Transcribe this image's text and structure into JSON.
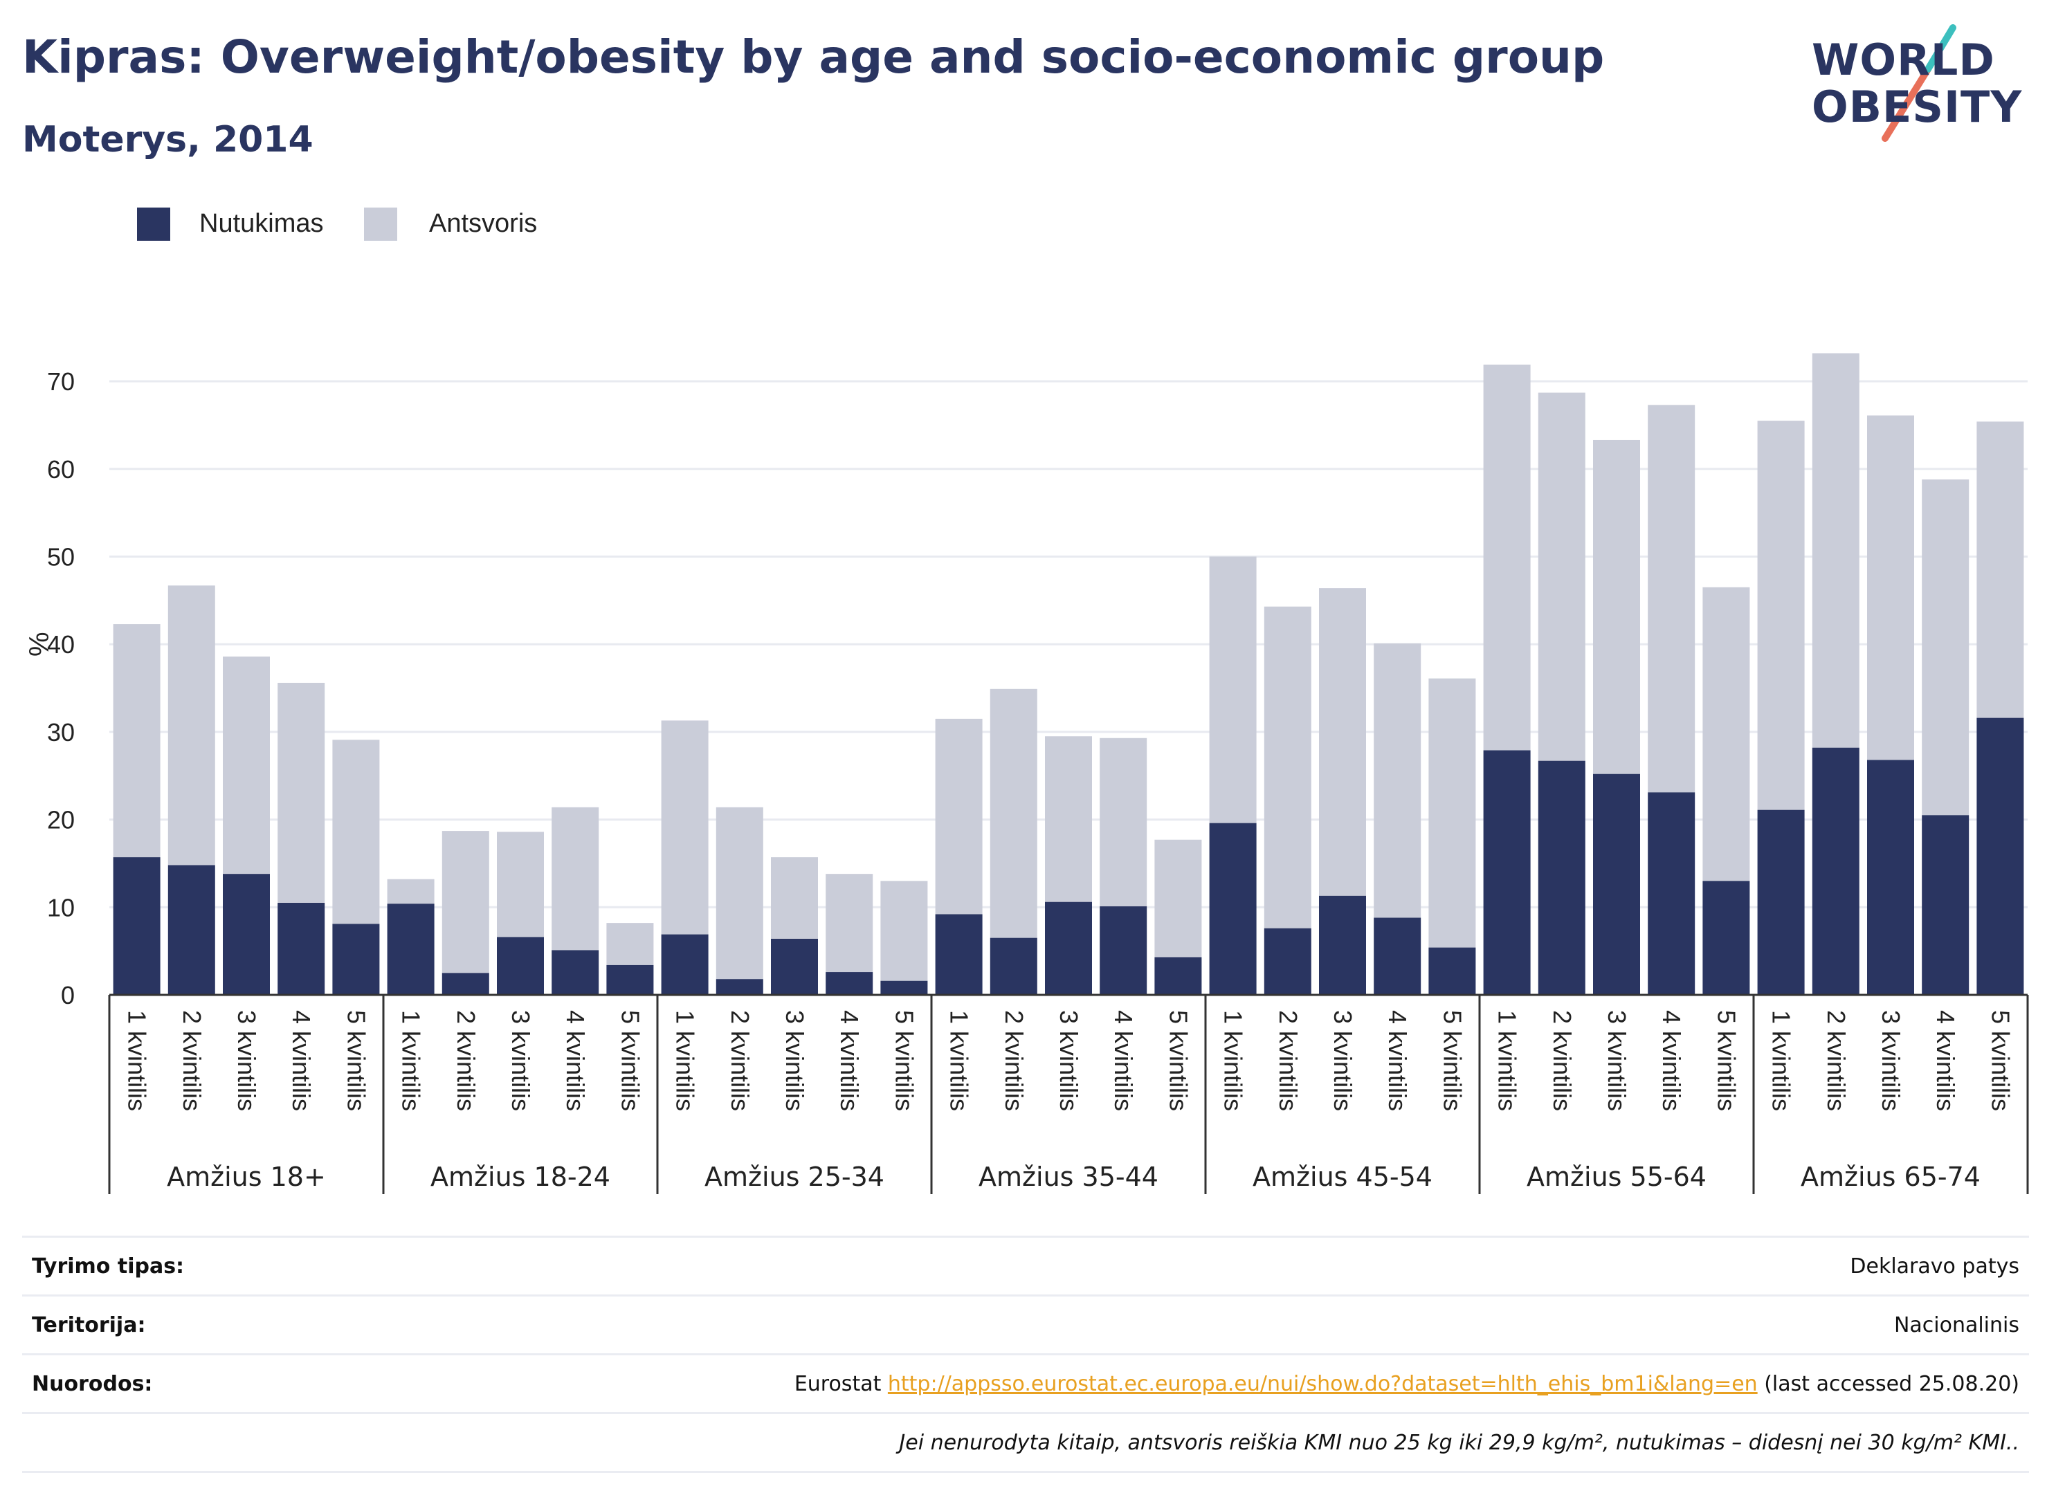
{
  "title": "Kipras: Overweight/obesity by age and socio-economic group",
  "subtitle": "Moterys, 2014",
  "logo": {
    "line1": "WORLD",
    "line2": "OBESITY"
  },
  "legend": [
    {
      "label": "Nutukimas",
      "color": "#2a3561"
    },
    {
      "label": "Antsvoris",
      "color": "#cacdd9"
    }
  ],
  "chart_data": {
    "type": "bar",
    "stacked": true,
    "ylabel": "%",
    "ylim": [
      0,
      75
    ],
    "yticks": [
      0,
      10,
      20,
      30,
      40,
      50,
      60,
      70
    ],
    "grid": true,
    "legend_position": "top-left",
    "groups": [
      {
        "label": "Amžius 18+",
        "categories": [
          "1 kvintilis",
          "2 kvintilis",
          "3 kvintilis",
          "4 kvintilis",
          "5 kvintilis"
        ]
      },
      {
        "label": "Amžius 18-24",
        "categories": [
          "1 kvintilis",
          "2 kvintilis",
          "3 kvintilis",
          "4 kvintilis",
          "5 kvintilis"
        ]
      },
      {
        "label": "Amžius 25-34",
        "categories": [
          "1 kvintilis",
          "2 kvintilis",
          "3 kvintilis",
          "4 kvintilis",
          "5 kvintilis"
        ]
      },
      {
        "label": "Amžius 35-44",
        "categories": [
          "1 kvintilis",
          "2 kvintilis",
          "3 kvintilis",
          "4 kvintilis",
          "5 kvintilis"
        ]
      },
      {
        "label": "Amžius 45-54",
        "categories": [
          "1 kvintilis",
          "2 kvintilis",
          "3 kvintilis",
          "4 kvintilis",
          "5 kvintilis"
        ]
      },
      {
        "label": "Amžius 55-64",
        "categories": [
          "1 kvintilis",
          "2 kvintilis",
          "3 kvintilis",
          "4 kvintilis",
          "5 kvintilis"
        ]
      },
      {
        "label": "Amžius 65-74",
        "categories": [
          "1 kvintilis",
          "2 kvintilis",
          "3 kvintilis",
          "4 kvintilis",
          "5 kvintilis"
        ]
      }
    ],
    "series": [
      {
        "name": "Nutukimas",
        "color": "#2a3561",
        "values": [
          15.7,
          14.8,
          13.8,
          10.5,
          8.1,
          10.4,
          2.5,
          6.6,
          5.1,
          3.4,
          6.9,
          1.8,
          6.4,
          2.6,
          1.6,
          9.2,
          6.5,
          10.6,
          10.1,
          4.3,
          19.6,
          7.6,
          11.3,
          8.8,
          5.4,
          27.9,
          26.7,
          25.2,
          23.1,
          13.0,
          21.1,
          28.2,
          26.8,
          20.5,
          31.6
        ]
      },
      {
        "name": "Antsvoris",
        "color": "#cacdd9",
        "values": [
          26.6,
          31.9,
          24.8,
          25.1,
          21.0,
          2.8,
          16.2,
          12.0,
          16.3,
          4.8,
          24.4,
          19.6,
          9.3,
          11.2,
          11.4,
          22.3,
          28.4,
          18.9,
          19.2,
          13.4,
          30.4,
          36.7,
          35.1,
          31.3,
          30.7,
          44.0,
          42.0,
          38.1,
          44.2,
          33.5,
          44.4,
          45.0,
          39.3,
          38.3,
          33.8
        ]
      }
    ]
  },
  "footer": {
    "rows": [
      {
        "label": "Tyrimo tipas:",
        "value": "Deklaravo patys"
      },
      {
        "label": "Teritorija:",
        "value": "Nacionalinis"
      },
      {
        "label": "Nuorodos:",
        "prefix": "Eurostat ",
        "link": "http://appsso.eurostat.ec.europa.eu/nui/show.do?dataset=hlth_ehis_bm1i&lang=en",
        "suffix": " (last accessed 25.08.20)"
      }
    ],
    "note": "Jei nenurodyta kitaip, antsvoris reiškia KMI nuo 25 kg iki 29,9 kg/m², nutukimas – didesnį nei 30 kg/m² KMI.."
  }
}
